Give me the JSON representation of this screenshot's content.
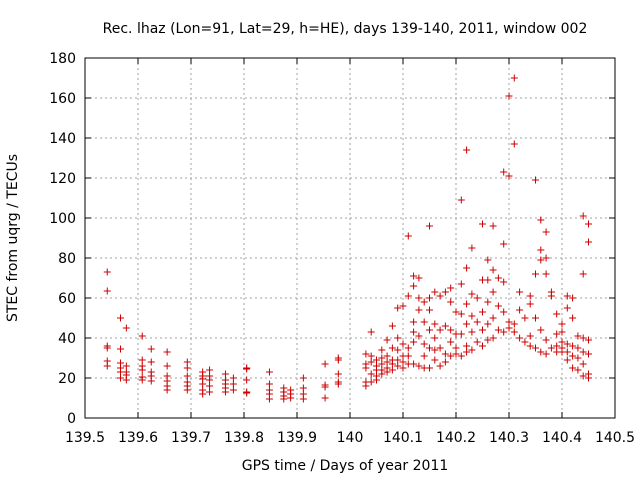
{
  "chart_data": {
    "type": "scatter",
    "title": "Rec. lhaz (Lon=91, Lat=29, h=HE), days 139-140, 2011, window 002",
    "xlabel": "GPS time / Days of year 2011",
    "ylabel": "STEC from uqrg / TECUs",
    "xlim": [
      139.5,
      140.5
    ],
    "ylim": [
      0,
      180
    ],
    "xticks": [
      139.5,
      139.6,
      139.7,
      139.8,
      139.9,
      140.0,
      140.1,
      140.2,
      140.3,
      140.4,
      140.5
    ],
    "xtick_labels": [
      "139.5",
      "139.6",
      "139.7",
      "139.8",
      "139.9",
      "140",
      "140.1",
      "140.2",
      "140.3",
      "140.4",
      "140.5"
    ],
    "yticks": [
      0,
      20,
      40,
      60,
      80,
      100,
      120,
      140,
      160,
      180
    ],
    "ytick_labels": [
      "0",
      "20",
      "40",
      "60",
      "80",
      "100",
      "120",
      "140",
      "160",
      "180"
    ],
    "grid": true,
    "marker": "+",
    "marker_color": "#cc0000",
    "series": [
      {
        "points": [
          [
            139.542,
            73
          ],
          [
            139.542,
            63.5
          ],
          [
            139.542,
            36
          ],
          [
            139.542,
            35
          ],
          [
            139.542,
            28.5
          ],
          [
            139.542,
            26
          ],
          [
            139.567,
            50
          ],
          [
            139.567,
            34.5
          ],
          [
            139.567,
            27.5
          ],
          [
            139.567,
            25
          ],
          [
            139.567,
            23
          ],
          [
            139.567,
            20
          ],
          [
            139.578,
            45
          ],
          [
            139.578,
            26
          ],
          [
            139.578,
            23
          ],
          [
            139.578,
            21.5
          ],
          [
            139.578,
            19
          ],
          [
            139.608,
            41
          ],
          [
            139.608,
            29
          ],
          [
            139.608,
            26
          ],
          [
            139.608,
            24
          ],
          [
            139.608,
            20.5
          ],
          [
            139.608,
            19
          ],
          [
            139.625,
            34.5
          ],
          [
            139.625,
            28
          ],
          [
            139.625,
            23
          ],
          [
            139.625,
            21
          ],
          [
            139.625,
            18.5
          ],
          [
            139.655,
            33
          ],
          [
            139.655,
            26
          ],
          [
            139.655,
            21
          ],
          [
            139.655,
            18.5
          ],
          [
            139.655,
            16
          ],
          [
            139.655,
            14
          ],
          [
            139.693,
            28
          ],
          [
            139.693,
            25
          ],
          [
            139.693,
            21
          ],
          [
            139.693,
            18
          ],
          [
            139.693,
            16
          ],
          [
            139.693,
            14
          ],
          [
            139.722,
            23
          ],
          [
            139.722,
            21
          ],
          [
            139.722,
            19.5
          ],
          [
            139.722,
            17
          ],
          [
            139.722,
            14
          ],
          [
            139.722,
            12
          ],
          [
            139.735,
            24
          ],
          [
            139.735,
            21
          ],
          [
            139.735,
            19
          ],
          [
            139.735,
            16
          ],
          [
            139.735,
            13
          ],
          [
            139.765,
            22
          ],
          [
            139.765,
            19
          ],
          [
            139.765,
            17
          ],
          [
            139.765,
            15
          ],
          [
            139.765,
            13
          ],
          [
            139.78,
            20
          ],
          [
            139.78,
            17
          ],
          [
            139.78,
            14
          ],
          [
            139.805,
            25
          ],
          [
            139.805,
            24.5
          ],
          [
            139.805,
            19
          ],
          [
            139.805,
            13
          ],
          [
            139.805,
            12.5
          ],
          [
            139.848,
            23
          ],
          [
            139.848,
            17
          ],
          [
            139.848,
            14
          ],
          [
            139.848,
            12
          ],
          [
            139.848,
            9.5
          ],
          [
            139.875,
            15
          ],
          [
            139.875,
            13
          ],
          [
            139.875,
            11
          ],
          [
            139.875,
            9.5
          ],
          [
            139.888,
            14
          ],
          [
            139.888,
            12
          ],
          [
            139.888,
            10
          ],
          [
            139.912,
            20
          ],
          [
            139.912,
            15
          ],
          [
            139.912,
            12
          ],
          [
            139.912,
            9.5
          ],
          [
            139.953,
            27
          ],
          [
            139.953,
            16.5
          ],
          [
            139.953,
            15.5
          ],
          [
            139.953,
            10
          ],
          [
            139.978,
            30
          ],
          [
            139.978,
            29
          ],
          [
            139.978,
            22
          ],
          [
            139.978,
            18
          ],
          [
            139.978,
            17
          ],
          [
            140.03,
            32
          ],
          [
            140.03,
            27
          ],
          [
            140.03,
            25
          ],
          [
            140.03,
            18
          ],
          [
            140.03,
            16
          ],
          [
            140.04,
            43
          ],
          [
            140.04,
            31
          ],
          [
            140.04,
            28
          ],
          [
            140.04,
            22
          ],
          [
            140.04,
            18
          ],
          [
            140.05,
            29
          ],
          [
            140.05,
            26
          ],
          [
            140.05,
            24
          ],
          [
            140.05,
            21
          ],
          [
            140.05,
            19
          ],
          [
            140.06,
            34
          ],
          [
            140.06,
            30
          ],
          [
            140.06,
            27
          ],
          [
            140.06,
            24
          ],
          [
            140.06,
            22
          ],
          [
            140.07,
            39
          ],
          [
            140.07,
            31
          ],
          [
            140.07,
            28
          ],
          [
            140.07,
            25
          ],
          [
            140.07,
            23
          ],
          [
            140.08,
            46
          ],
          [
            140.08,
            35
          ],
          [
            140.08,
            29
          ],
          [
            140.08,
            27
          ],
          [
            140.08,
            24
          ],
          [
            140.09,
            55
          ],
          [
            140.09,
            40
          ],
          [
            140.09,
            34
          ],
          [
            140.09,
            29
          ],
          [
            140.09,
            26
          ],
          [
            140.1,
            56
          ],
          [
            140.1,
            37
          ],
          [
            140.1,
            31
          ],
          [
            140.1,
            28
          ],
          [
            140.1,
            25
          ],
          [
            140.11,
            91
          ],
          [
            140.11,
            61
          ],
          [
            140.11,
            35
          ],
          [
            140.11,
            31
          ],
          [
            140.11,
            27
          ],
          [
            140.12,
            71
          ],
          [
            140.12,
            66
          ],
          [
            140.12,
            48
          ],
          [
            140.12,
            43
          ],
          [
            140.12,
            38
          ],
          [
            140.12,
            27
          ],
          [
            140.13,
            70
          ],
          [
            140.13,
            60
          ],
          [
            140.13,
            54
          ],
          [
            140.13,
            41
          ],
          [
            140.13,
            26
          ],
          [
            140.14,
            58
          ],
          [
            140.14,
            48
          ],
          [
            140.14,
            37
          ],
          [
            140.14,
            31
          ],
          [
            140.14,
            25
          ],
          [
            140.15,
            96
          ],
          [
            140.15,
            60
          ],
          [
            140.15,
            54
          ],
          [
            140.15,
            44
          ],
          [
            140.15,
            35
          ],
          [
            140.15,
            25
          ],
          [
            140.16,
            63
          ],
          [
            140.16,
            47
          ],
          [
            140.16,
            40
          ],
          [
            140.16,
            34
          ],
          [
            140.16,
            29
          ],
          [
            140.17,
            61
          ],
          [
            140.17,
            44
          ],
          [
            140.17,
            35
          ],
          [
            140.17,
            26
          ],
          [
            140.18,
            63
          ],
          [
            140.18,
            46
          ],
          [
            140.18,
            32
          ],
          [
            140.18,
            28
          ],
          [
            140.19,
            65
          ],
          [
            140.19,
            58
          ],
          [
            140.19,
            44
          ],
          [
            140.19,
            38
          ],
          [
            140.19,
            31
          ],
          [
            140.2,
            53
          ],
          [
            140.2,
            42
          ],
          [
            140.2,
            35
          ],
          [
            140.2,
            32
          ],
          [
            140.21,
            109
          ],
          [
            140.21,
            67
          ],
          [
            140.21,
            52
          ],
          [
            140.21,
            42
          ],
          [
            140.21,
            31
          ],
          [
            140.22,
            134
          ],
          [
            140.22,
            75
          ],
          [
            140.22,
            57
          ],
          [
            140.22,
            47
          ],
          [
            140.22,
            36
          ],
          [
            140.22,
            33
          ],
          [
            140.23,
            85
          ],
          [
            140.23,
            62
          ],
          [
            140.23,
            51
          ],
          [
            140.23,
            43
          ],
          [
            140.23,
            34
          ],
          [
            140.24,
            60
          ],
          [
            140.24,
            48
          ],
          [
            140.24,
            38
          ],
          [
            140.25,
            97
          ],
          [
            140.25,
            69
          ],
          [
            140.25,
            53
          ],
          [
            140.25,
            44
          ],
          [
            140.25,
            36
          ],
          [
            140.26,
            79
          ],
          [
            140.26,
            69
          ],
          [
            140.26,
            58
          ],
          [
            140.26,
            47
          ],
          [
            140.26,
            39
          ],
          [
            140.27,
            96
          ],
          [
            140.27,
            74
          ],
          [
            140.27,
            63
          ],
          [
            140.27,
            50
          ],
          [
            140.27,
            40
          ],
          [
            140.28,
            70
          ],
          [
            140.28,
            56
          ],
          [
            140.28,
            44
          ],
          [
            140.29,
            123
          ],
          [
            140.29,
            87
          ],
          [
            140.29,
            68
          ],
          [
            140.29,
            53
          ],
          [
            140.29,
            43
          ],
          [
            140.3,
            121
          ],
          [
            140.3,
            161
          ],
          [
            140.3,
            48
          ],
          [
            140.3,
            45
          ],
          [
            140.31,
            170
          ],
          [
            140.31,
            137
          ],
          [
            140.31,
            47
          ],
          [
            140.31,
            43
          ],
          [
            140.32,
            63
          ],
          [
            140.32,
            54
          ],
          [
            140.32,
            40
          ],
          [
            140.33,
            50
          ],
          [
            140.33,
            38
          ],
          [
            140.34,
            61
          ],
          [
            140.34,
            57
          ],
          [
            140.34,
            41
          ],
          [
            140.34,
            36
          ],
          [
            140.35,
            119
          ],
          [
            140.35,
            72
          ],
          [
            140.35,
            50
          ],
          [
            140.35,
            35
          ],
          [
            140.36,
            99
          ],
          [
            140.36,
            84
          ],
          [
            140.36,
            79
          ],
          [
            140.36,
            44
          ],
          [
            140.36,
            33
          ],
          [
            140.37,
            93
          ],
          [
            140.37,
            80
          ],
          [
            140.37,
            72
          ],
          [
            140.37,
            39
          ],
          [
            140.37,
            32
          ],
          [
            140.38,
            63
          ],
          [
            140.38,
            61
          ],
          [
            140.38,
            35
          ],
          [
            140.39,
            52
          ],
          [
            140.39,
            42
          ],
          [
            140.39,
            36
          ],
          [
            140.39,
            33
          ],
          [
            140.4,
            47
          ],
          [
            140.4,
            43
          ],
          [
            140.4,
            38
          ],
          [
            140.4,
            35
          ],
          [
            140.4,
            33
          ],
          [
            140.41,
            61
          ],
          [
            140.41,
            55
          ],
          [
            140.41,
            37
          ],
          [
            140.41,
            33
          ],
          [
            140.41,
            29
          ],
          [
            140.42,
            60
          ],
          [
            140.42,
            50
          ],
          [
            140.42,
            36
          ],
          [
            140.42,
            31
          ],
          [
            140.42,
            25
          ],
          [
            140.43,
            41
          ],
          [
            140.43,
            35
          ],
          [
            140.43,
            30
          ],
          [
            140.43,
            24
          ],
          [
            140.44,
            101
          ],
          [
            140.44,
            72
          ],
          [
            140.44,
            40
          ],
          [
            140.44,
            33
          ],
          [
            140.44,
            27
          ],
          [
            140.44,
            21
          ],
          [
            140.45,
            97
          ],
          [
            140.45,
            88
          ],
          [
            140.45,
            39
          ],
          [
            140.45,
            32
          ],
          [
            140.45,
            22
          ],
          [
            140.45,
            20
          ]
        ]
      }
    ]
  }
}
